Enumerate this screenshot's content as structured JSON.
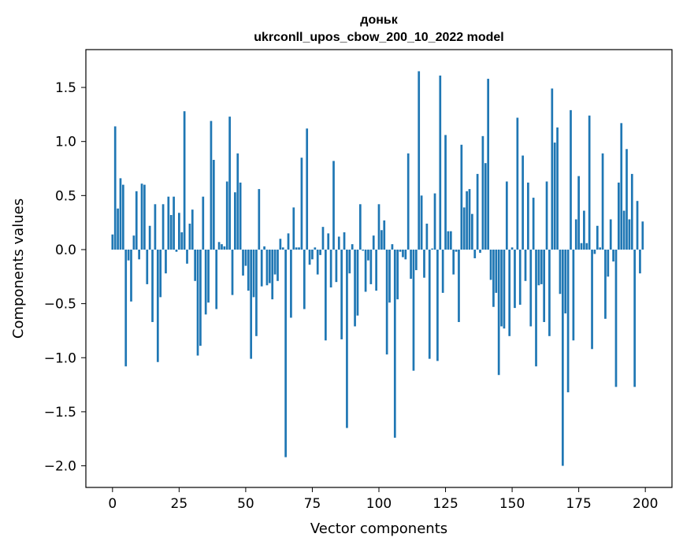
{
  "chart_data": {
    "type": "bar",
    "title": "доньк",
    "subtitle": "ukrconll_upos_cbow_200_10_2022 model",
    "xlabel": "Vector components",
    "ylabel": "Components values",
    "xlim": [
      -10,
      210
    ],
    "ylim": [
      -2.2,
      1.85
    ],
    "x_ticks": [
      0,
      25,
      50,
      75,
      100,
      125,
      150,
      175,
      200
    ],
    "y_ticks": [
      -2.0,
      -1.5,
      -1.0,
      -0.5,
      0.0,
      0.5,
      1.0,
      1.5
    ],
    "y_tick_labels": [
      "−2.0",
      "−1.5",
      "−1.0",
      "−0.5",
      "0.0",
      "0.5",
      "1.0",
      "1.5"
    ],
    "bar_color": "#1f77b4",
    "grid": false,
    "legend": "none",
    "x": [
      0,
      1,
      2,
      3,
      4,
      5,
      6,
      7,
      8,
      9,
      10,
      11,
      12,
      13,
      14,
      15,
      16,
      17,
      18,
      19,
      20,
      21,
      22,
      23,
      24,
      25,
      26,
      27,
      28,
      29,
      30,
      31,
      32,
      33,
      34,
      35,
      36,
      37,
      38,
      39,
      40,
      41,
      42,
      43,
      44,
      45,
      46,
      47,
      48,
      49,
      50,
      51,
      52,
      53,
      54,
      55,
      56,
      57,
      58,
      59,
      60,
      61,
      62,
      63,
      64,
      65,
      66,
      67,
      68,
      69,
      70,
      71,
      72,
      73,
      74,
      75,
      76,
      77,
      78,
      79,
      80,
      81,
      82,
      83,
      84,
      85,
      86,
      87,
      88,
      89,
      90,
      91,
      92,
      93,
      94,
      95,
      96,
      97,
      98,
      99,
      100,
      101,
      102,
      103,
      104,
      105,
      106,
      107,
      108,
      109,
      110,
      111,
      112,
      113,
      114,
      115,
      116,
      117,
      118,
      119,
      120,
      121,
      122,
      123,
      124,
      125,
      126,
      127,
      128,
      129,
      130,
      131,
      132,
      133,
      134,
      135,
      136,
      137,
      138,
      139,
      140,
      141,
      142,
      143,
      144,
      145,
      146,
      147,
      148,
      149,
      150,
      151,
      152,
      153,
      154,
      155,
      156,
      157,
      158,
      159,
      160,
      161,
      162,
      163,
      164,
      165,
      166,
      167,
      168,
      169,
      170,
      171,
      172,
      173,
      174,
      175,
      176,
      177,
      178,
      179,
      180,
      181,
      182,
      183,
      184,
      185,
      186,
      187,
      188,
      189,
      190,
      191,
      192,
      193,
      194,
      195,
      196,
      197,
      198,
      199
    ],
    "values": [
      0.14,
      1.14,
      0.38,
      0.66,
      0.6,
      -1.08,
      -0.1,
      -0.48,
      0.13,
      0.54,
      -0.09,
      0.61,
      0.6,
      -0.32,
      0.22,
      -0.67,
      0.42,
      -1.04,
      -0.44,
      0.42,
      -0.22,
      0.49,
      0.32,
      0.49,
      -0.02,
      0.34,
      0.16,
      1.28,
      -0.13,
      0.24,
      0.37,
      -0.29,
      -0.98,
      -0.89,
      0.49,
      -0.6,
      -0.49,
      1.19,
      0.83,
      -0.55,
      0.07,
      0.05,
      0.03,
      0.63,
      1.23,
      -0.42,
      0.53,
      0.89,
      0.62,
      -0.24,
      -0.15,
      -0.38,
      -1.01,
      -0.44,
      -0.8,
      0.56,
      -0.34,
      0.03,
      -0.33,
      -0.31,
      -0.46,
      -0.23,
      -0.29,
      0.1,
      0.02,
      -1.92,
      0.15,
      -0.63,
      0.39,
      0.02,
      0.02,
      0.85,
      -0.55,
      1.12,
      -0.14,
      -0.09,
      0.02,
      -0.23,
      -0.05,
      0.21,
      -0.84,
      0.15,
      -0.35,
      0.82,
      -0.3,
      0.12,
      -0.83,
      0.16,
      -1.65,
      -0.22,
      0.05,
      -0.71,
      -0.61,
      0.42,
      -0.01,
      -0.39,
      -0.1,
      -0.32,
      0.13,
      -0.38,
      0.42,
      0.18,
      0.27,
      -0.97,
      -0.49,
      0.05,
      -1.74,
      -0.46,
      -0.02,
      -0.07,
      -0.09,
      0.89,
      -0.27,
      -1.12,
      -0.19,
      1.65,
      0.5,
      -0.26,
      0.24,
      -1.01,
      0.01,
      0.52,
      -1.03,
      1.61,
      -0.4,
      1.06,
      0.17,
      0.17,
      -0.23,
      -0.02,
      -0.67,
      0.97,
      0.39,
      0.54,
      0.56,
      0.33,
      -0.08,
      0.7,
      -0.03,
      1.05,
      0.8,
      1.58,
      -0.28,
      -0.53,
      -0.4,
      -1.16,
      -0.71,
      -0.73,
      0.63,
      -0.8,
      0.02,
      -0.54,
      1.22,
      -0.51,
      0.87,
      -0.29,
      0.62,
      -0.71,
      0.48,
      -1.08,
      -0.33,
      -0.32,
      -0.67,
      0.63,
      -0.8,
      1.49,
      0.99,
      1.13,
      -0.41,
      -2.0,
      -0.59,
      -1.32,
      1.29,
      -0.84,
      0.28,
      0.68,
      0.06,
      0.36,
      0.06,
      1.24,
      -0.92,
      -0.04,
      0.22,
      0.02,
      0.89,
      -0.64,
      -0.25,
      0.28,
      -0.11,
      -1.27,
      0.62,
      1.17,
      0.36,
      0.93,
      0.28,
      0.7,
      -1.27,
      0.45,
      -0.22,
      0.26
    ]
  }
}
